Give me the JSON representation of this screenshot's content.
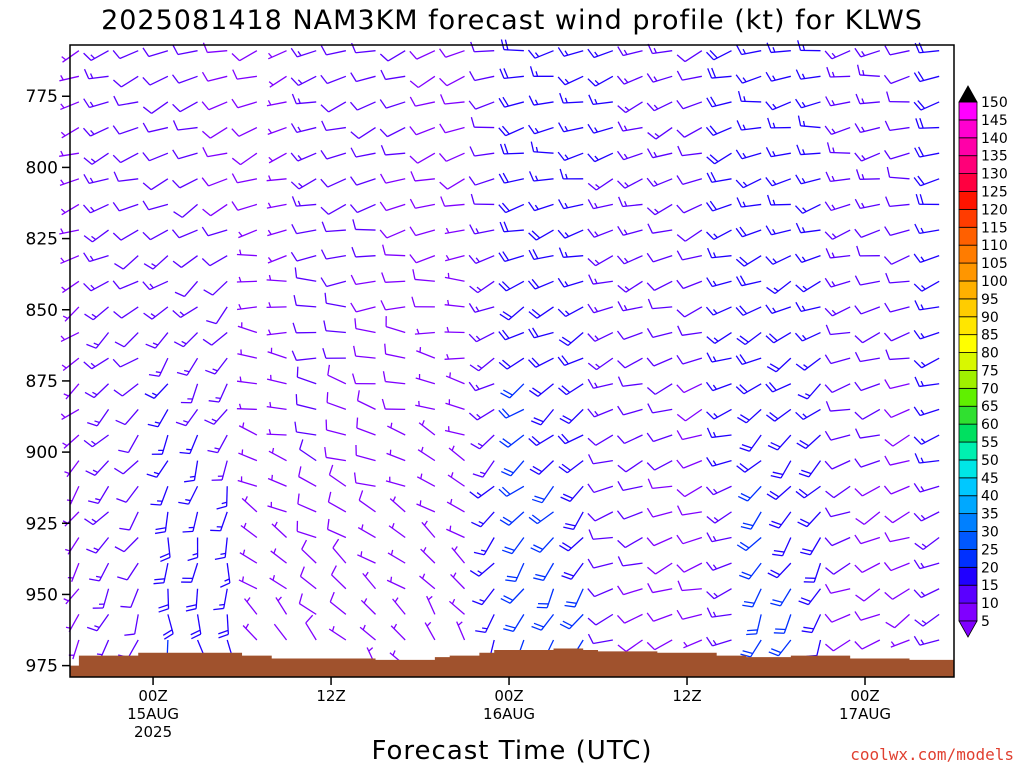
{
  "chart_data": {
    "type": "wind-barb-profile",
    "title": "2025081418 NAM3KM forecast wind profile (kt) for KLWS",
    "xlabel": "Forecast Time (UTC)",
    "ylabel": "",
    "credit": "coolwx.com/models",
    "units": "kt",
    "y_axis": {
      "ticks": [
        775,
        800,
        825,
        850,
        875,
        900,
        925,
        950,
        975
      ],
      "range_hPa": [
        757,
        979
      ],
      "inverted": true
    },
    "x_axis": {
      "range_hours": [
        -5.6,
        54
      ],
      "ticks": [
        {
          "hour": 0,
          "lines": [
            "00Z",
            "15AUG",
            "2025"
          ]
        },
        {
          "hour": 12,
          "lines": [
            "12Z"
          ]
        },
        {
          "hour": 24,
          "lines": [
            "00Z",
            "16AUG"
          ]
        },
        {
          "hour": 36,
          "lines": [
            "12Z"
          ]
        },
        {
          "hour": 48,
          "lines": [
            "00Z",
            "17AUG"
          ]
        }
      ]
    },
    "colorbar": {
      "levels": [
        5,
        10,
        15,
        20,
        25,
        30,
        35,
        40,
        45,
        50,
        55,
        60,
        65,
        70,
        75,
        80,
        85,
        90,
        95,
        100,
        105,
        110,
        115,
        120,
        125,
        130,
        135,
        140,
        145,
        150
      ],
      "colors": [
        "#8000ff",
        "#5a00ff",
        "#2000ff",
        "#0030ff",
        "#0058ff",
        "#0080ff",
        "#00a8ff",
        "#00c8ff",
        "#00e6e6",
        "#00f0b0",
        "#00e060",
        "#30e030",
        "#60f000",
        "#a0f000",
        "#d8f800",
        "#ffff00",
        "#ffe600",
        "#ffcc00",
        "#ffb000",
        "#ff9600",
        "#ff7c00",
        "#ff6000",
        "#ff3c00",
        "#ff1400",
        "#ff0040",
        "#ff0078",
        "#ff00a8",
        "#ff00d0",
        "#ff00ff",
        "#f000ff"
      ]
    },
    "barb_levels_hPa": [
      759,
      768,
      777,
      786,
      795,
      804,
      813,
      822,
      831,
      840,
      849,
      858,
      867,
      876,
      885,
      894,
      903,
      912,
      921,
      930,
      939,
      948,
      957,
      966,
      975
    ],
    "barb_times_hours": [
      -5,
      -3,
      -1,
      1,
      3,
      5,
      7,
      9,
      11,
      13,
      15,
      17,
      19,
      21,
      23,
      25,
      27,
      29,
      31,
      33,
      35,
      37,
      39,
      41,
      43,
      45,
      47,
      49,
      51,
      53
    ],
    "wind_regimes": [
      {
        "from_hour": -6,
        "to_hour": 0,
        "low_level_dir": 200,
        "low_level_speed_kt": 10,
        "upper_dir": 250,
        "upper_speed_kt": 10
      },
      {
        "from_hour": 0,
        "to_hour": 6,
        "low_level_dir": 165,
        "low_level_speed_kt": 20,
        "upper_dir": 250,
        "upper_speed_kt": 10
      },
      {
        "from_hour": 6,
        "to_hour": 19,
        "low_level_dir": 320,
        "low_level_speed_kt": 5,
        "upper_dir": 250,
        "upper_speed_kt": 10
      },
      {
        "from_hour": 19,
        "to_hour": 22,
        "low_level_dir": 330,
        "low_level_speed_kt": 5,
        "upper_dir": 250,
        "upper_speed_kt": 10
      },
      {
        "from_hour": 22,
        "to_hour": 30,
        "low_level_dir": 205,
        "low_level_speed_kt": 20,
        "upper_dir": 260,
        "upper_speed_kt": 15
      },
      {
        "from_hour": 30,
        "to_hour": 40,
        "low_level_dir": 250,
        "low_level_speed_kt": 10,
        "upper_dir": 250,
        "upper_speed_kt": 15
      },
      {
        "from_hour": 40,
        "to_hour": 47,
        "low_level_dir": 200,
        "low_level_speed_kt": 20,
        "upper_dir": 260,
        "upper_speed_kt": 15
      },
      {
        "from_hour": 47,
        "to_hour": 54,
        "low_level_dir": 240,
        "low_level_speed_kt": 10,
        "upper_dir": 260,
        "upper_speed_kt": 15
      }
    ],
    "surface_pressure_hPa": [
      {
        "hour": -5.6,
        "p": 975
      },
      {
        "hour": -5,
        "p": 971.5
      },
      {
        "hour": -2,
        "p": 971.5
      },
      {
        "hour": -1,
        "p": 970.5
      },
      {
        "hour": 5,
        "p": 970.5
      },
      {
        "hour": 6,
        "p": 971.5
      },
      {
        "hour": 8,
        "p": 972.5
      },
      {
        "hour": 14,
        "p": 972.5
      },
      {
        "hour": 15,
        "p": 973
      },
      {
        "hour": 19,
        "p": 972
      },
      {
        "hour": 20,
        "p": 971.5
      },
      {
        "hour": 22,
        "p": 970.5
      },
      {
        "hour": 23,
        "p": 969.5
      },
      {
        "hour": 26,
        "p": 969.5
      },
      {
        "hour": 27,
        "p": 969
      },
      {
        "hour": 29,
        "p": 969.5
      },
      {
        "hour": 30,
        "p": 970
      },
      {
        "hour": 34,
        "p": 970.5
      },
      {
        "hour": 37,
        "p": 970.5
      },
      {
        "hour": 38,
        "p": 971.5
      },
      {
        "hour": 40,
        "p": 972
      },
      {
        "hour": 42,
        "p": 972
      },
      {
        "hour": 43,
        "p": 971.5
      },
      {
        "hour": 46,
        "p": 971.5
      },
      {
        "hour": 47,
        "p": 972.5
      },
      {
        "hour": 50,
        "p": 972.5
      },
      {
        "hour": 51,
        "p": 973
      },
      {
        "hour": 54,
        "p": 973
      }
    ],
    "terrain_color": "#a0522d",
    "grid": false
  }
}
